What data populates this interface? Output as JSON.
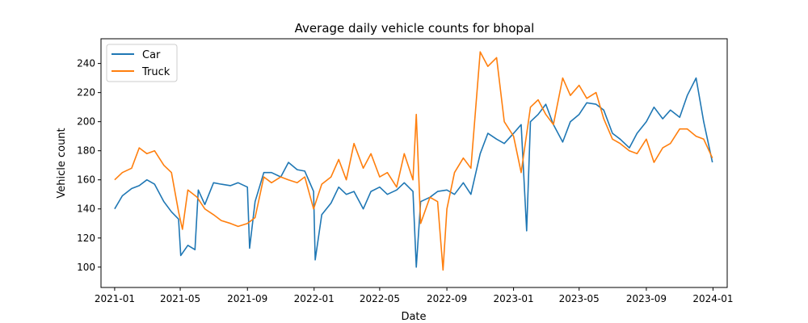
{
  "chart_data": {
    "type": "line",
    "title": "Average daily vehicle counts for bhopal",
    "xlabel": "Date",
    "ylabel": "Vehicle count",
    "x_range": [
      "2020-12-07",
      "2024-01-27"
    ],
    "ylim": [
      86,
      257
    ],
    "x_ticks": [
      "2021-01-01",
      "2021-05-01",
      "2021-09-01",
      "2022-01-01",
      "2022-05-01",
      "2022-09-01",
      "2023-01-01",
      "2023-05-01",
      "2023-09-01",
      "2024-01-01"
    ],
    "x_tick_labels": [
      "2021-01",
      "2021-05",
      "2021-09",
      "2022-01",
      "2022-05",
      "2022-09",
      "2023-01",
      "2023-05",
      "2023-09",
      "2024-01"
    ],
    "y_ticks": [
      100,
      120,
      140,
      160,
      180,
      200,
      220,
      240
    ],
    "legend_position": "upper-left",
    "grid": false,
    "series": [
      {
        "name": "Car",
        "color": "#1f77b4",
        "x": [
          "2021-01-01",
          "2021-01-15",
          "2021-02-01",
          "2021-02-15",
          "2021-03-01",
          "2021-03-15",
          "2021-04-01",
          "2021-04-15",
          "2021-04-28",
          "2021-05-02",
          "2021-05-15",
          "2021-05-28",
          "2021-06-03",
          "2021-06-15",
          "2021-07-01",
          "2021-07-15",
          "2021-08-01",
          "2021-08-15",
          "2021-09-01",
          "2021-09-05",
          "2021-09-15",
          "2021-10-01",
          "2021-10-15",
          "2021-11-01",
          "2021-11-15",
          "2021-12-01",
          "2021-12-15",
          "2021-12-31",
          "2022-01-03",
          "2022-01-15",
          "2022-02-01",
          "2022-02-15",
          "2022-03-01",
          "2022-03-15",
          "2022-04-01",
          "2022-04-15",
          "2022-05-01",
          "2022-05-15",
          "2022-06-01",
          "2022-06-15",
          "2022-07-01",
          "2022-07-07",
          "2022-07-15",
          "2022-08-01",
          "2022-08-15",
          "2022-09-01",
          "2022-09-15",
          "2022-10-01",
          "2022-10-15",
          "2022-11-01",
          "2022-11-15",
          "2022-12-01",
          "2022-12-15",
          "2023-01-01",
          "2023-01-15",
          "2023-01-25",
          "2023-02-01",
          "2023-02-15",
          "2023-03-01",
          "2023-03-15",
          "2023-04-01",
          "2023-04-15",
          "2023-05-01",
          "2023-05-15",
          "2023-06-01",
          "2023-06-15",
          "2023-07-01",
          "2023-07-15",
          "2023-08-01",
          "2023-08-15",
          "2023-09-01",
          "2023-09-15",
          "2023-10-01",
          "2023-10-15",
          "2023-11-01",
          "2023-11-15",
          "2023-12-01",
          "2023-12-15",
          "2023-12-31"
        ],
        "y": [
          140,
          149,
          154,
          156,
          160,
          157,
          145,
          138,
          133,
          108,
          115,
          112,
          153,
          143,
          158,
          157,
          156,
          158,
          155,
          113,
          145,
          165,
          165,
          162,
          172,
          167,
          166,
          152,
          105,
          136,
          144,
          155,
          150,
          152,
          140,
          152,
          155,
          150,
          153,
          158,
          152,
          100,
          145,
          148,
          152,
          153,
          150,
          158,
          150,
          178,
          192,
          188,
          185,
          192,
          198,
          125,
          200,
          205,
          212,
          198,
          186,
          200,
          205,
          213,
          212,
          208,
          192,
          188,
          182,
          192,
          200,
          210,
          202,
          208,
          203,
          218,
          230,
          200,
          172
        ]
      },
      {
        "name": "Truck",
        "color": "#ff7f0e",
        "x": [
          "2021-01-01",
          "2021-01-15",
          "2021-02-01",
          "2021-02-15",
          "2021-03-01",
          "2021-03-15",
          "2021-04-01",
          "2021-04-15",
          "2021-04-28",
          "2021-05-05",
          "2021-05-15",
          "2021-06-01",
          "2021-06-15",
          "2021-07-01",
          "2021-07-15",
          "2021-08-01",
          "2021-08-15",
          "2021-09-01",
          "2021-09-15",
          "2021-10-01",
          "2021-10-15",
          "2021-11-01",
          "2021-11-15",
          "2021-12-01",
          "2021-12-15",
          "2021-12-31",
          "2022-01-15",
          "2022-02-01",
          "2022-02-15",
          "2022-03-01",
          "2022-03-15",
          "2022-04-01",
          "2022-04-15",
          "2022-05-01",
          "2022-05-15",
          "2022-06-01",
          "2022-06-15",
          "2022-07-01",
          "2022-07-07",
          "2022-07-15",
          "2022-08-01",
          "2022-08-15",
          "2022-08-25",
          "2022-09-01",
          "2022-09-15",
          "2022-10-01",
          "2022-10-15",
          "2022-11-01",
          "2022-11-15",
          "2022-12-01",
          "2022-12-15",
          "2023-01-01",
          "2023-01-15",
          "2023-02-01",
          "2023-02-15",
          "2023-03-01",
          "2023-03-15",
          "2023-04-01",
          "2023-04-15",
          "2023-05-01",
          "2023-05-15",
          "2023-06-01",
          "2023-06-15",
          "2023-07-01",
          "2023-07-15",
          "2023-08-01",
          "2023-08-15",
          "2023-09-01",
          "2023-09-15",
          "2023-10-01",
          "2023-10-15",
          "2023-11-01",
          "2023-11-15",
          "2023-12-01",
          "2023-12-15",
          "2023-12-31"
        ],
        "y": [
          160,
          165,
          168,
          182,
          178,
          180,
          170,
          165,
          138,
          126,
          153,
          148,
          140,
          136,
          132,
          130,
          128,
          130,
          134,
          162,
          158,
          162,
          160,
          158,
          162,
          140,
          157,
          162,
          174,
          160,
          185,
          168,
          178,
          162,
          165,
          155,
          178,
          160,
          205,
          130,
          148,
          145,
          98,
          140,
          165,
          175,
          168,
          248,
          238,
          244,
          200,
          190,
          165,
          210,
          215,
          205,
          198,
          230,
          218,
          225,
          216,
          220,
          202,
          188,
          185,
          180,
          178,
          188,
          172,
          182,
          185,
          195,
          195,
          190,
          188,
          175
        ]
      }
    ]
  }
}
